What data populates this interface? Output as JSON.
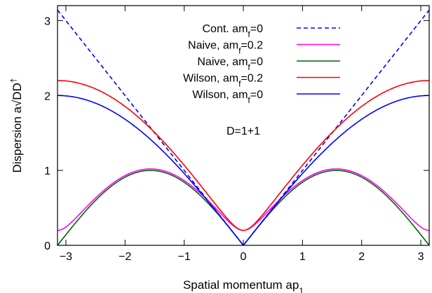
{
  "chart_data": {
    "type": "line",
    "xlabel": "Spatial momentum ap",
    "xlabel_sub": "1",
    "ylabel": "Dispersion a√DD",
    "ylabel_sup": "†",
    "xlim": [
      -3.1416,
      3.1416
    ],
    "ylim": [
      0,
      3.2
    ],
    "xticks": [
      -3,
      -2,
      -1,
      0,
      1,
      2,
      3
    ],
    "xtick_labels": [
      "−3",
      "−2",
      "−1",
      "0",
      "1",
      "2",
      "3"
    ],
    "yticks": [
      0,
      1,
      2,
      3
    ],
    "ytick_labels": [
      "0",
      "1",
      "2",
      "3"
    ],
    "legend_position": "top-center",
    "annotation": "D=1+1",
    "grid": false,
    "sample_count": 401,
    "series": [
      {
        "name_main": "Cont. am",
        "name_sub": "f",
        "name_tail": "=0",
        "color": "#0000ff",
        "dashed": true,
        "formula": "abs(p)",
        "x": [
          -3.1416,
          0,
          3.1416
        ],
        "y": [
          3.1416,
          0,
          3.1416
        ]
      },
      {
        "name_main": "Naive, am",
        "name_sub": "f",
        "name_tail": "=0.2",
        "color": "#ff00ff",
        "dashed": false,
        "formula": "sqrt(sin(p)^2 + 0.2^2)",
        "x": [
          -3.1416,
          -1.5708,
          0,
          1.5708,
          3.1416
        ],
        "y": [
          0.2,
          1.0198,
          0.2,
          1.0198,
          0.2
        ]
      },
      {
        "name_main": "Naive, am",
        "name_sub": "f",
        "name_tail": "=0",
        "color": "#006400",
        "dashed": false,
        "formula": "abs(sin(p))",
        "x": [
          -3.1416,
          -1.5708,
          0,
          1.5708,
          3.1416
        ],
        "y": [
          0,
          1.0,
          0,
          1.0,
          0
        ]
      },
      {
        "name_main": "Wilson, am",
        "name_sub": "f",
        "name_tail": "=0.2",
        "color": "#ff0000",
        "dashed": false,
        "formula": "sqrt(sin(p)^2 + (0.2 + 1 - cos(p))^2)",
        "x": [
          -3.1416,
          -1.5708,
          0,
          1.5708,
          3.1416
        ],
        "y": [
          2.2,
          1.562,
          0.2,
          1.562,
          2.2
        ]
      },
      {
        "name_main": "Wilson, am",
        "name_sub": "f",
        "name_tail": "=0",
        "color": "#0000ff",
        "dashed": false,
        "formula": "2*abs(sin(p/2))",
        "x": [
          -3.1416,
          -1.5708,
          0,
          1.5708,
          3.1416
        ],
        "y": [
          2.0,
          1.4142,
          0,
          1.4142,
          2.0
        ]
      }
    ]
  }
}
